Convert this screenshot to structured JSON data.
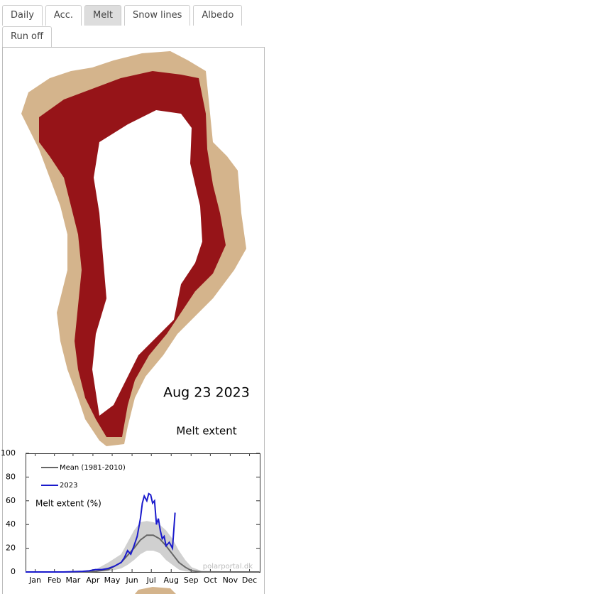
{
  "tabs": [
    "Daily",
    "Acc.",
    "Melt",
    "Snow lines",
    "Albedo",
    "Run off"
  ],
  "active_tab": 2,
  "map": {
    "date": "Aug 23 2023",
    "caption": "Melt extent"
  },
  "chart_data": {
    "type": "line",
    "y_label": "Melt extent (%)",
    "watermark": "polarportal.dk",
    "xlim": [
      1,
      366
    ],
    "xticks": [
      {
        "value": 16,
        "label": "Jan"
      },
      {
        "value": 46,
        "label": "Feb"
      },
      {
        "value": 75,
        "label": "Mar"
      },
      {
        "value": 106,
        "label": "Apr"
      },
      {
        "value": 136,
        "label": "May"
      },
      {
        "value": 167,
        "label": "Jun"
      },
      {
        "value": 197,
        "label": "Jul"
      },
      {
        "value": 228,
        "label": "Aug"
      },
      {
        "value": 259,
        "label": "Sep"
      },
      {
        "value": 289,
        "label": "Oct"
      },
      {
        "value": 320,
        "label": "Nov"
      },
      {
        "value": 350,
        "label": "Dec"
      }
    ],
    "ylim": [
      0,
      100
    ],
    "yticks": [
      0,
      20,
      40,
      60,
      80,
      100
    ],
    "band": {
      "color": "#d0d0d0",
      "x": [
        1,
        90,
        110,
        130,
        150,
        160,
        170,
        180,
        190,
        200,
        210,
        220,
        230,
        240,
        250,
        260,
        275,
        365
      ],
      "low": [
        0,
        0,
        0,
        0.5,
        3,
        6,
        10,
        15,
        18,
        18,
        16,
        10,
        6,
        2,
        0.5,
        0,
        0,
        0
      ],
      "high": [
        0,
        0.5,
        2,
        8,
        15,
        25,
        35,
        42,
        43,
        42,
        40,
        35,
        28,
        18,
        10,
        4,
        1,
        0
      ]
    },
    "series": [
      {
        "name": "Mean (1981-2010)",
        "color": "#666666",
        "x": [
          1,
          90,
          110,
          130,
          150,
          160,
          170,
          180,
          190,
          200,
          210,
          220,
          230,
          240,
          250,
          260,
          275,
          365
        ],
        "values": [
          0,
          0,
          0.5,
          2,
          8,
          14,
          20,
          27,
          31,
          31,
          28,
          22,
          15,
          8,
          4,
          1,
          0,
          0
        ]
      },
      {
        "name": "2023",
        "color": "#1a1acc",
        "x": [
          1,
          30,
          60,
          90,
          100,
          110,
          120,
          130,
          140,
          150,
          155,
          160,
          165,
          170,
          175,
          180,
          183,
          186,
          190,
          193,
          196,
          199,
          202,
          205,
          208,
          211,
          214,
          217,
          220,
          225,
          228,
          230,
          232,
          234
        ],
        "values": [
          0,
          0,
          0,
          0.5,
          1,
          2,
          2,
          3,
          5,
          8,
          12,
          18,
          15,
          22,
          30,
          45,
          58,
          64,
          60,
          66,
          65,
          58,
          60,
          40,
          45,
          35,
          28,
          30,
          22,
          25,
          22,
          20,
          35,
          50
        ]
      }
    ]
  }
}
